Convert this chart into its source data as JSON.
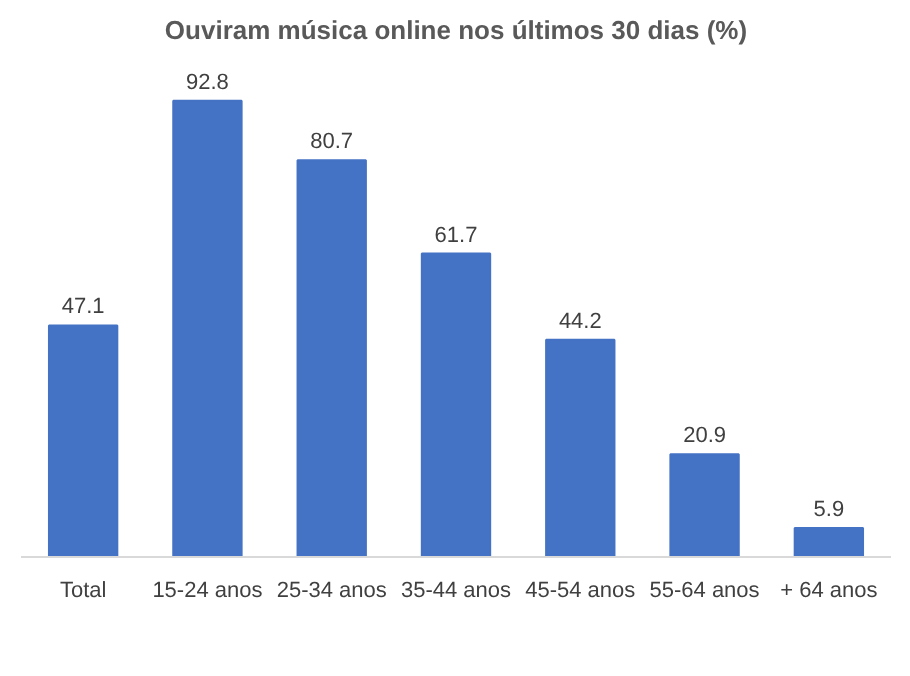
{
  "chart_data": {
    "type": "bar",
    "title": "Ouviram música online nos últimos 30 dias (%)",
    "categories": [
      "Total",
      "15-24 anos",
      "25-34 anos",
      "35-44 anos",
      "45-54 anos",
      "55-64 anos",
      "+ 64 anos"
    ],
    "values": [
      47.1,
      92.8,
      80.7,
      61.7,
      44.2,
      20.9,
      5.9
    ],
    "color": "#4472c4",
    "data_labels": true
  }
}
